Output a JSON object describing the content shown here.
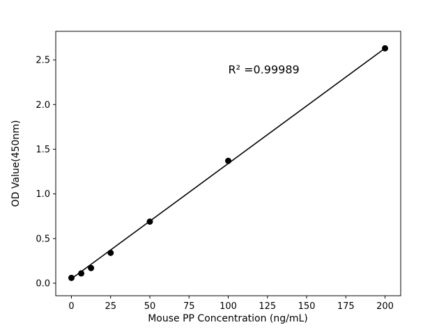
{
  "chart_data": {
    "type": "scatter",
    "title": "",
    "xlabel": "Mouse PP Concentration (ng/mL)",
    "ylabel": "OD Value(450nm)",
    "annotation": "R² =0.99989",
    "x": [
      0,
      6.25,
      12.5,
      25,
      50,
      100,
      200
    ],
    "y": [
      0.06,
      0.11,
      0.17,
      0.34,
      0.69,
      1.37,
      2.63
    ],
    "fit_line": {
      "x": [
        0,
        200
      ],
      "y": [
        0.05,
        2.63
      ]
    },
    "xticks": [
      0,
      25,
      50,
      75,
      100,
      125,
      150,
      175,
      200
    ],
    "yticks": [
      0.0,
      0.5,
      1.0,
      1.5,
      2.0,
      2.5
    ],
    "xlim": [
      -10,
      210
    ],
    "ylim": [
      -0.14,
      2.82
    ],
    "grid": false,
    "legend": "none",
    "marker_color": "#000000",
    "line_color": "#000000",
    "background_color": "#ffffff"
  }
}
